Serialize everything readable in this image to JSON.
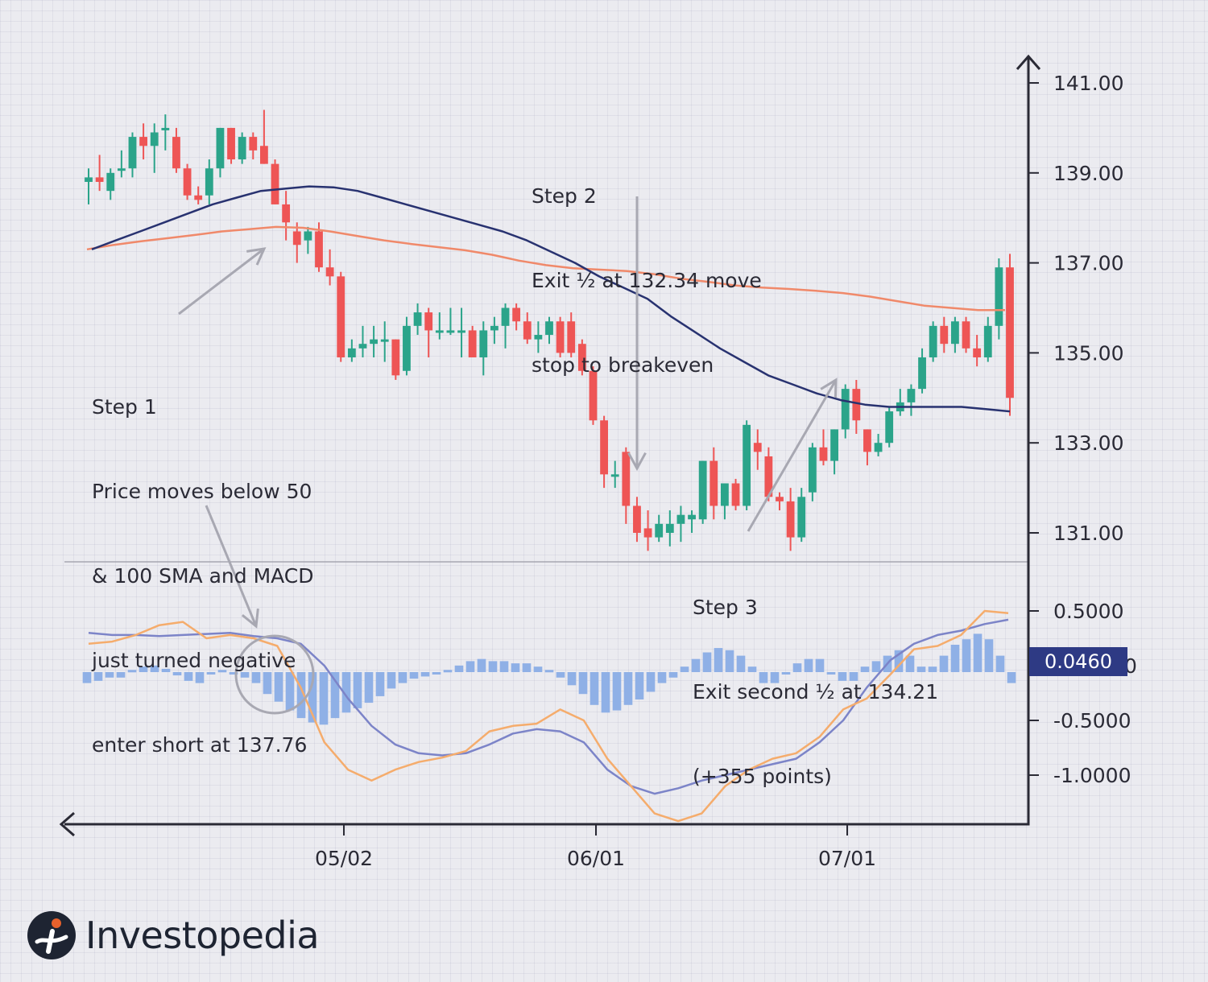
{
  "chart_data": [
    {
      "type": "candlestick",
      "title": "",
      "y_ticks": [
        "141.00",
        "139.00",
        "137.00",
        "135.00",
        "133.00",
        "131.00"
      ],
      "y_range": [
        130.35,
        141.7
      ],
      "x_ticks": [
        "05/02",
        "06/01",
        "07/01"
      ],
      "candles": [
        {
          "o": 138.8,
          "h": 139.1,
          "l": 138.3,
          "c": 138.9
        },
        {
          "o": 138.9,
          "h": 139.4,
          "l": 138.6,
          "c": 138.8
        },
        {
          "o": 138.6,
          "h": 139.1,
          "l": 138.4,
          "c": 139.0
        },
        {
          "o": 139.1,
          "h": 139.5,
          "l": 138.9,
          "c": 139.1
        },
        {
          "o": 139.1,
          "h": 139.9,
          "l": 138.9,
          "c": 139.8
        },
        {
          "o": 139.8,
          "h": 140.1,
          "l": 139.3,
          "c": 139.6
        },
        {
          "o": 139.6,
          "h": 140.1,
          "l": 139.0,
          "c": 139.9
        },
        {
          "o": 140.0,
          "h": 140.3,
          "l": 139.5,
          "c": 140.0
        },
        {
          "o": 139.8,
          "h": 140.0,
          "l": 139.0,
          "c": 139.1
        },
        {
          "o": 139.1,
          "h": 139.2,
          "l": 138.4,
          "c": 138.5
        },
        {
          "o": 138.5,
          "h": 138.7,
          "l": 138.3,
          "c": 138.4
        },
        {
          "o": 138.5,
          "h": 139.3,
          "l": 138.3,
          "c": 139.1
        },
        {
          "o": 139.1,
          "h": 140.0,
          "l": 138.9,
          "c": 140.0
        },
        {
          "o": 140.0,
          "h": 140.0,
          "l": 139.2,
          "c": 139.3
        },
        {
          "o": 139.3,
          "h": 139.9,
          "l": 139.2,
          "c": 139.8
        },
        {
          "o": 139.8,
          "h": 139.9,
          "l": 139.3,
          "c": 139.5
        },
        {
          "o": 139.6,
          "h": 140.4,
          "l": 139.2,
          "c": 139.2
        },
        {
          "o": 139.2,
          "h": 139.3,
          "l": 138.3,
          "c": 138.3
        },
        {
          "o": 138.3,
          "h": 138.6,
          "l": 137.5,
          "c": 137.9
        },
        {
          "o": 137.7,
          "h": 137.9,
          "l": 137.0,
          "c": 137.4
        },
        {
          "o": 137.5,
          "h": 137.8,
          "l": 137.2,
          "c": 137.7
        },
        {
          "o": 137.7,
          "h": 137.9,
          "l": 136.8,
          "c": 136.9
        },
        {
          "o": 136.9,
          "h": 137.3,
          "l": 136.5,
          "c": 136.7
        },
        {
          "o": 136.7,
          "h": 136.8,
          "l": 134.8,
          "c": 134.9
        },
        {
          "o": 134.9,
          "h": 135.3,
          "l": 134.8,
          "c": 135.1
        },
        {
          "o": 135.1,
          "h": 135.6,
          "l": 134.9,
          "c": 135.2
        },
        {
          "o": 135.2,
          "h": 135.6,
          "l": 134.9,
          "c": 135.3
        },
        {
          "o": 135.3,
          "h": 135.7,
          "l": 134.8,
          "c": 135.3
        },
        {
          "o": 135.3,
          "h": 135.3,
          "l": 134.4,
          "c": 134.5
        },
        {
          "o": 134.6,
          "h": 135.8,
          "l": 134.5,
          "c": 135.6
        },
        {
          "o": 135.6,
          "h": 136.1,
          "l": 135.4,
          "c": 135.9
        },
        {
          "o": 135.9,
          "h": 136.0,
          "l": 134.9,
          "c": 135.5
        },
        {
          "o": 135.5,
          "h": 135.9,
          "l": 135.3,
          "c": 135.5
        },
        {
          "o": 135.5,
          "h": 136.0,
          "l": 135.4,
          "c": 135.5
        },
        {
          "o": 135.5,
          "h": 136.0,
          "l": 134.9,
          "c": 135.5
        },
        {
          "o": 135.5,
          "h": 135.6,
          "l": 134.9,
          "c": 134.9
        },
        {
          "o": 134.9,
          "h": 135.7,
          "l": 134.5,
          "c": 135.5
        },
        {
          "o": 135.5,
          "h": 135.8,
          "l": 135.2,
          "c": 135.6
        },
        {
          "o": 135.6,
          "h": 136.1,
          "l": 135.1,
          "c": 136.0
        },
        {
          "o": 136.0,
          "h": 136.1,
          "l": 135.5,
          "c": 135.7
        },
        {
          "o": 135.7,
          "h": 135.9,
          "l": 135.2,
          "c": 135.3
        },
        {
          "o": 135.3,
          "h": 135.7,
          "l": 135.0,
          "c": 135.4
        },
        {
          "o": 135.4,
          "h": 135.8,
          "l": 135.2,
          "c": 135.7
        },
        {
          "o": 135.7,
          "h": 135.8,
          "l": 134.9,
          "c": 135.0
        },
        {
          "o": 135.7,
          "h": 135.9,
          "l": 134.9,
          "c": 135.0
        },
        {
          "o": 135.2,
          "h": 135.3,
          "l": 134.5,
          "c": 134.6
        },
        {
          "o": 134.6,
          "h": 134.7,
          "l": 133.4,
          "c": 133.5
        },
        {
          "o": 133.5,
          "h": 133.6,
          "l": 132.0,
          "c": 132.3
        },
        {
          "o": 132.3,
          "h": 132.6,
          "l": 132.0,
          "c": 132.3
        },
        {
          "o": 132.8,
          "h": 132.9,
          "l": 131.2,
          "c": 131.6
        },
        {
          "o": 131.6,
          "h": 131.8,
          "l": 130.8,
          "c": 131.0
        },
        {
          "o": 131.1,
          "h": 131.5,
          "l": 130.6,
          "c": 130.9
        },
        {
          "o": 130.9,
          "h": 131.4,
          "l": 130.8,
          "c": 131.2
        },
        {
          "o": 131.0,
          "h": 131.5,
          "l": 130.7,
          "c": 131.2
        },
        {
          "o": 131.2,
          "h": 131.6,
          "l": 130.8,
          "c": 131.4
        },
        {
          "o": 131.3,
          "h": 131.5,
          "l": 131.0,
          "c": 131.4
        },
        {
          "o": 131.3,
          "h": 132.6,
          "l": 131.2,
          "c": 132.6
        },
        {
          "o": 132.6,
          "h": 132.9,
          "l": 131.3,
          "c": 131.6
        },
        {
          "o": 131.6,
          "h": 132.1,
          "l": 131.3,
          "c": 132.1
        },
        {
          "o": 132.1,
          "h": 132.2,
          "l": 131.5,
          "c": 131.6
        },
        {
          "o": 131.6,
          "h": 133.5,
          "l": 131.5,
          "c": 133.4
        },
        {
          "o": 133.0,
          "h": 133.3,
          "l": 132.4,
          "c": 132.8
        },
        {
          "o": 132.7,
          "h": 132.9,
          "l": 131.7,
          "c": 131.8
        },
        {
          "o": 131.8,
          "h": 131.9,
          "l": 131.5,
          "c": 131.7
        },
        {
          "o": 131.7,
          "h": 132.0,
          "l": 130.6,
          "c": 130.9
        },
        {
          "o": 130.9,
          "h": 132.0,
          "l": 130.8,
          "c": 131.8
        },
        {
          "o": 131.9,
          "h": 133.0,
          "l": 131.7,
          "c": 132.9
        },
        {
          "o": 132.9,
          "h": 133.3,
          "l": 132.5,
          "c": 132.6
        },
        {
          "o": 132.6,
          "h": 133.3,
          "l": 132.3,
          "c": 133.3
        },
        {
          "o": 133.3,
          "h": 134.3,
          "l": 133.1,
          "c": 134.2
        },
        {
          "o": 134.2,
          "h": 134.4,
          "l": 133.2,
          "c": 133.5
        },
        {
          "o": 133.3,
          "h": 133.3,
          "l": 132.5,
          "c": 132.8
        },
        {
          "o": 132.8,
          "h": 133.2,
          "l": 132.7,
          "c": 133.0
        },
        {
          "o": 133.0,
          "h": 133.8,
          "l": 132.9,
          "c": 133.7
        },
        {
          "o": 133.7,
          "h": 134.2,
          "l": 133.6,
          "c": 133.9
        },
        {
          "o": 133.9,
          "h": 134.3,
          "l": 133.6,
          "c": 134.2
        },
        {
          "o": 134.2,
          "h": 135.1,
          "l": 134.1,
          "c": 134.9
        },
        {
          "o": 134.9,
          "h": 135.7,
          "l": 134.8,
          "c": 135.6
        },
        {
          "o": 135.6,
          "h": 135.8,
          "l": 135.0,
          "c": 135.2
        },
        {
          "o": 135.2,
          "h": 135.8,
          "l": 135.0,
          "c": 135.7
        },
        {
          "o": 135.7,
          "h": 135.8,
          "l": 135.0,
          "c": 135.1
        },
        {
          "o": 135.1,
          "h": 135.4,
          "l": 134.7,
          "c": 134.9
        },
        {
          "o": 134.9,
          "h": 135.8,
          "l": 134.8,
          "c": 135.6
        },
        {
          "o": 135.6,
          "h": 137.1,
          "l": 135.3,
          "c": 136.9
        },
        {
          "o": 136.9,
          "h": 137.2,
          "l": 133.6,
          "c": 134.0
        }
      ],
      "sma_50": {
        "color": "#283270",
        "values": [
          137.3,
          137.5,
          137.7,
          137.9,
          138.1,
          138.3,
          138.45,
          138.6,
          138.65,
          138.7,
          138.68,
          138.6,
          138.45,
          138.3,
          138.15,
          138.0,
          137.85,
          137.7,
          137.5,
          137.25,
          137.0,
          136.7,
          136.45,
          136.2,
          135.8,
          135.45,
          135.1,
          134.8,
          134.5,
          134.3,
          134.1,
          133.95,
          133.85,
          133.8,
          133.8,
          133.8,
          133.8,
          133.75,
          133.7
        ]
      },
      "sma_100": {
        "color": "#f0896a",
        "values": [
          137.3,
          137.4,
          137.48,
          137.55,
          137.62,
          137.7,
          137.75,
          137.8,
          137.78,
          137.7,
          137.6,
          137.5,
          137.42,
          137.35,
          137.28,
          137.18,
          137.05,
          136.95,
          136.88,
          136.85,
          136.82,
          136.75,
          136.65,
          136.58,
          136.5,
          136.45,
          136.42,
          136.38,
          136.33,
          136.25,
          136.15,
          136.05,
          136.0,
          135.95,
          135.95
        ]
      },
      "legend_colors": {
        "up": "#2ba48a",
        "down": "#ee5555"
      }
    },
    {
      "type": "macd",
      "y_ticks": [
        "0.5000",
        "0",
        "-0.5000",
        "-1.0000"
      ],
      "y_range": [
        -1.47,
        0.72
      ],
      "current_value": "0.0460",
      "histogram": [
        -0.1,
        -0.08,
        -0.05,
        -0.05,
        0.02,
        0.05,
        0.06,
        0.03,
        -0.03,
        -0.08,
        -0.1,
        0,
        0.02,
        -0.02,
        -0.05,
        -0.1,
        -0.2,
        -0.27,
        -0.35,
        -0.42,
        -0.46,
        -0.48,
        -0.42,
        -0.37,
        -0.33,
        -0.28,
        -0.22,
        -0.15,
        -0.1,
        -0.06,
        -0.04,
        -0.02,
        0.02,
        0.06,
        0.1,
        0.12,
        0.1,
        0.1,
        0.08,
        0.08,
        0.05,
        0.02,
        -0.05,
        -0.12,
        -0.2,
        -0.3,
        -0.37,
        -0.35,
        -0.3,
        -0.25,
        -0.18,
        -0.1,
        -0.05,
        0.05,
        0.12,
        0.18,
        0.22,
        0.2,
        0.15,
        0.05,
        -0.1,
        -0.1,
        0,
        0.08,
        0.12,
        0.12,
        0,
        -0.08,
        -0.08,
        0.05,
        0.1,
        0.15,
        0.2,
        0.15,
        0.05,
        0.05,
        0.15,
        0.25,
        0.3,
        0.35,
        0.3,
        0.15,
        -0.1
      ],
      "macd_line": {
        "color": "#f5ac6c",
        "values": [
          0.2,
          0.22,
          0.28,
          0.37,
          0.4,
          0.25,
          0.28,
          0.25,
          0.18,
          -0.2,
          -0.7,
          -0.95,
          -1.05,
          -0.95,
          -0.88,
          -0.84,
          -0.78,
          -0.6,
          -0.55,
          -0.53,
          -0.4,
          -0.5,
          -0.85,
          -1.1,
          -1.35,
          -1.42,
          -1.35,
          -1.1,
          -0.95,
          -0.85,
          -0.8,
          -0.65,
          -0.4,
          -0.3,
          -0.08,
          0.15,
          0.18,
          0.28,
          0.5,
          0.48
        ]
      },
      "signal_line": {
        "color": "#7c84c8",
        "values": [
          0.3,
          0.28,
          0.28,
          0.27,
          0.28,
          0.29,
          0.3,
          0.27,
          0.25,
          0.2,
          0.0,
          -0.3,
          -0.55,
          -0.72,
          -0.8,
          -0.82,
          -0.8,
          -0.72,
          -0.62,
          -0.58,
          -0.6,
          -0.7,
          -0.95,
          -1.1,
          -1.17,
          -1.12,
          -1.05,
          -1.0,
          -0.95,
          -0.9,
          -0.85,
          -0.7,
          -0.5,
          -0.2,
          0.05,
          0.2,
          0.28,
          0.32,
          0.38,
          0.42
        ]
      }
    }
  ],
  "annotations": {
    "step1": [
      "Step 1",
      "Price moves below 50",
      "& 100 SMA and MACD",
      "just turned negative",
      "enter short at 137.76"
    ],
    "step2": [
      "Step 2",
      "Exit ½ at 132.34 move",
      "stop to breakeven"
    ],
    "step3": [
      "Step 3",
      "Exit second ½ at 134.21",
      "(+355 points)"
    ]
  },
  "badge": "0.0460",
  "logo": {
    "text": "Investopedia"
  }
}
